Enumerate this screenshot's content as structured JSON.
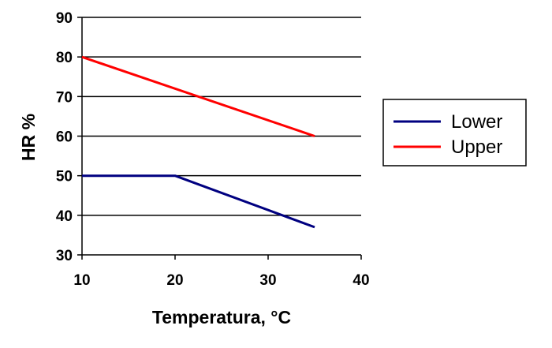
{
  "chart_data": {
    "type": "line",
    "title": "",
    "xlabel": "Temperatura, °C",
    "ylabel": "HR %",
    "xlim": [
      10,
      40
    ],
    "ylim": [
      30,
      90
    ],
    "xticks": [
      "10",
      "20",
      "30",
      "40"
    ],
    "yticks": [
      "30",
      "40",
      "50",
      "60",
      "70",
      "80",
      "90"
    ],
    "grid": "horizontal",
    "legend_position": "right",
    "series": [
      {
        "name": "Lower",
        "color": "#000080",
        "x": [
          10,
          20,
          35
        ],
        "y": [
          50,
          50,
          37
        ]
      },
      {
        "name": "Upper",
        "color": "#ff0000",
        "x": [
          10,
          35
        ],
        "y": [
          80,
          60
        ]
      }
    ]
  }
}
